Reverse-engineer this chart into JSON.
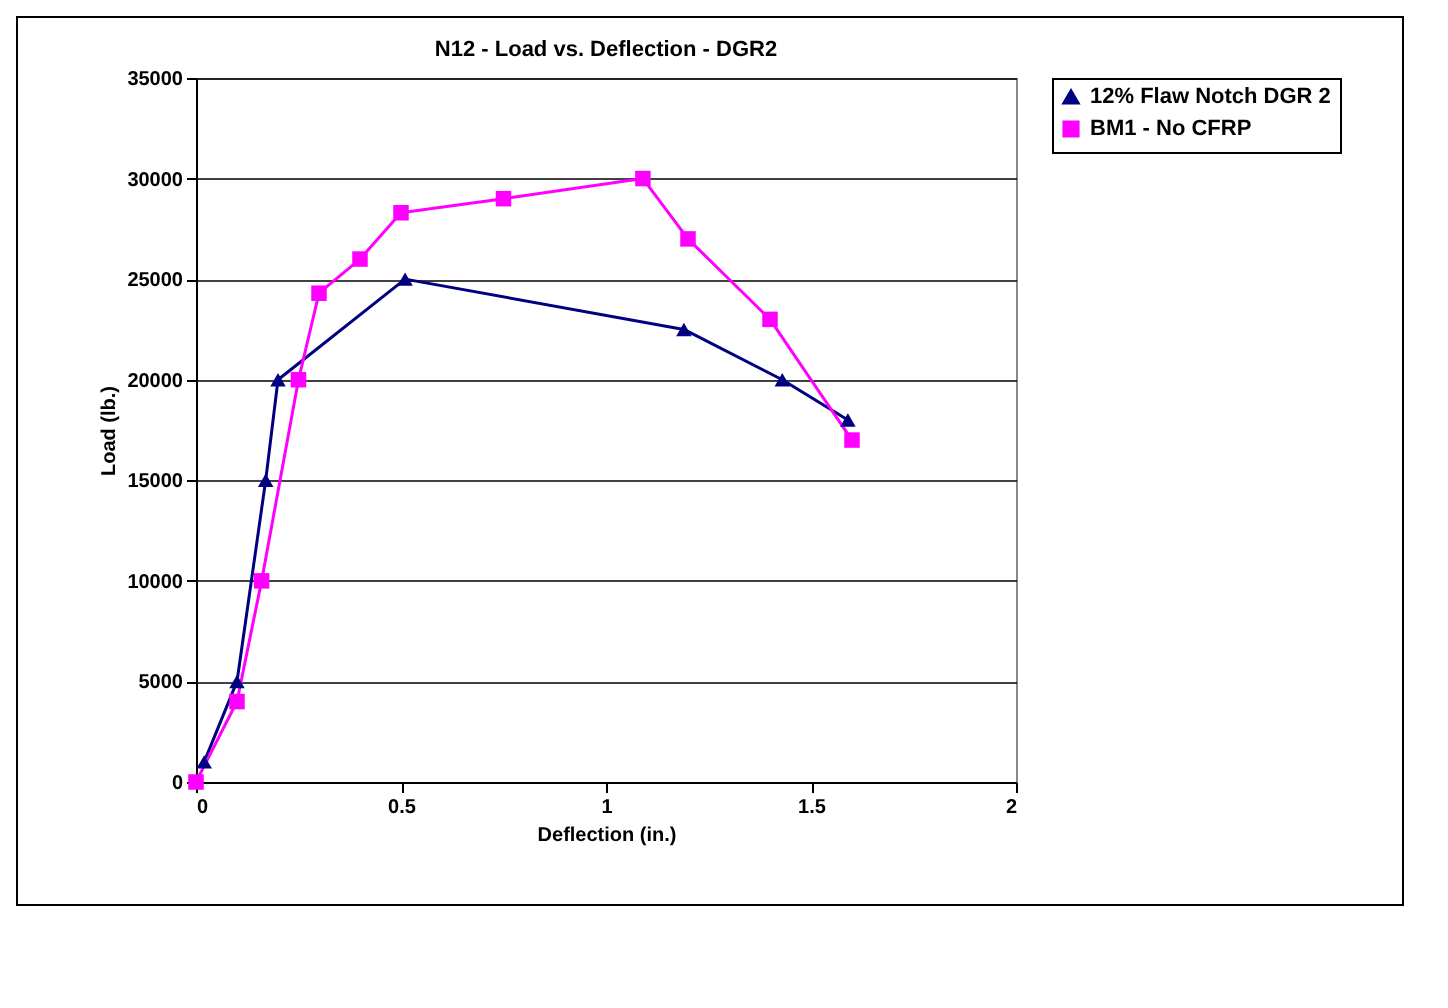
{
  "chart_data": {
    "type": "line",
    "title": "N12 - Load vs. Deflection - DGR2",
    "xlabel": "Deflection (in.)",
    "ylabel": "Load (lb.)",
    "xlim": [
      0,
      2
    ],
    "xticks": [
      0,
      0.5,
      1,
      1.5,
      2
    ],
    "ylim": [
      0,
      35000
    ],
    "yticks": [
      0,
      5000,
      10000,
      15000,
      20000,
      25000,
      30000,
      35000
    ],
    "grid": "y",
    "legend": "right",
    "series": [
      {
        "name": "12% Flaw Notch DGR 2",
        "color": "#000080",
        "marker": "triangle",
        "x": [
          0.02,
          0.1,
          0.17,
          0.2,
          0.51,
          1.19,
          1.43,
          1.59
        ],
        "values": [
          1000,
          5000,
          15000,
          20000,
          25000,
          22500,
          20000,
          18000
        ]
      },
      {
        "name": "BM1 - No CFRP",
        "color": "#ff00ff",
        "marker": "square",
        "x": [
          0,
          0.1,
          0.16,
          0.25,
          0.3,
          0.4,
          0.5,
          0.75,
          1.09,
          1.2,
          1.4,
          1.6
        ],
        "values": [
          0,
          4000,
          10000,
          20000,
          24300,
          26000,
          28300,
          29000,
          30000,
          27000,
          23000,
          17000
        ]
      }
    ]
  }
}
